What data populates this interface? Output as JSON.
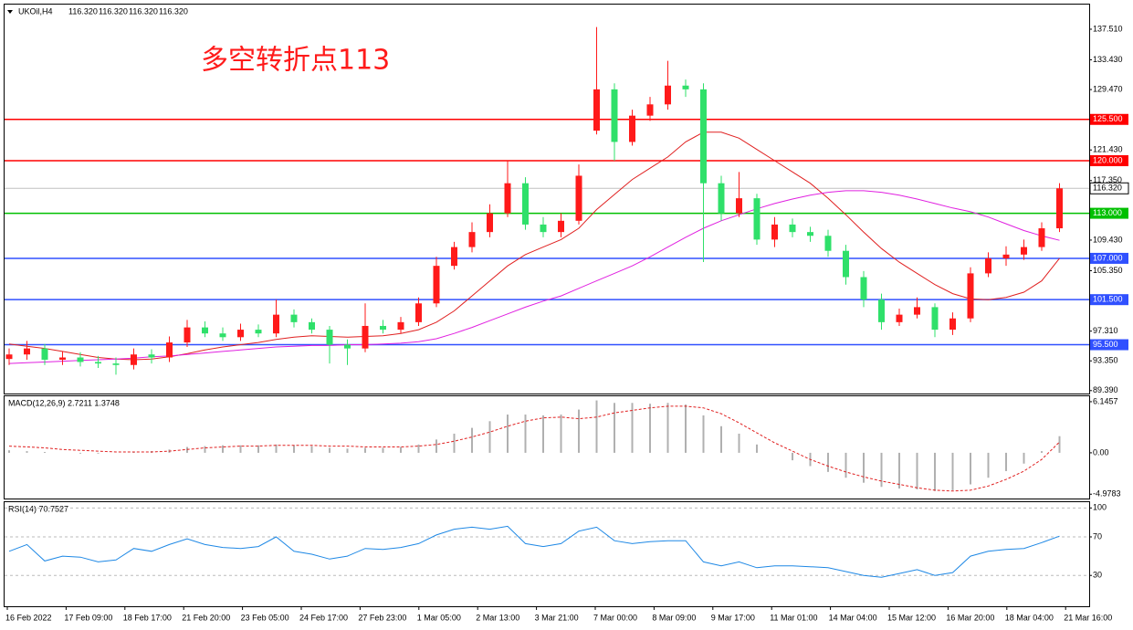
{
  "chart_data": [
    {
      "type": "candlestick",
      "title": "UKOil,H4",
      "ohlc_labels": [
        "116.320",
        "116.320",
        "116.320",
        "116.320"
      ],
      "annotation": "多空转折点113",
      "up_color": "#ff1a1a",
      "down_color": "#2fe06a",
      "open": [
        93.6,
        94.2,
        95.0,
        93.5,
        93.8,
        93.2,
        93.0,
        92.8,
        94.2,
        93.8,
        95.8,
        97.8,
        97.0,
        96.5,
        97.5,
        97.0,
        99.5,
        98.5,
        97.5,
        95.5,
        95.0,
        98.0,
        97.5,
        98.5,
        101.0,
        106.0,
        108.5,
        110.5,
        113.0,
        117.0,
        111.5,
        110.5,
        112.0,
        124.0,
        129.5,
        122.5,
        126.0,
        127.5,
        130.0,
        129.5,
        117.0,
        113.0,
        115.0,
        109.5,
        111.5,
        110.5,
        110.0,
        108.0,
        104.5,
        101.5,
        98.5,
        99.5,
        100.5,
        97.5,
        99.0,
        105.0,
        107.0,
        107.5,
        108.5,
        111.0
      ],
      "high": [
        95.0,
        96.0,
        95.6,
        94.6,
        94.5,
        94.0,
        93.8,
        95.0,
        94.9,
        96.6,
        98.8,
        98.6,
        97.8,
        98.3,
        98.2,
        101.5,
        100.2,
        99.0,
        98.0,
        96.2,
        101.0,
        98.8,
        99.2,
        101.8,
        107.2,
        109.2,
        111.8,
        114.2,
        120.0,
        117.8,
        112.5,
        113.0,
        119.5,
        137.8,
        130.3,
        126.8,
        128.5,
        133.3,
        130.8,
        130.3,
        118.0,
        118.5,
        115.6,
        112.5,
        112.3,
        111.2,
        110.8,
        108.8,
        105.3,
        102.3,
        100.3,
        101.8,
        101.0,
        99.8,
        105.8,
        107.8,
        108.6,
        109.5,
        111.8,
        117.0
      ],
      "low": [
        92.8,
        93.5,
        92.8,
        92.8,
        92.6,
        92.4,
        91.5,
        92.2,
        93.0,
        93.2,
        95.2,
        96.5,
        96.0,
        96.0,
        96.5,
        96.5,
        97.8,
        97.0,
        93.0,
        92.8,
        94.5,
        97.0,
        97.0,
        98.0,
        100.5,
        105.5,
        107.8,
        109.8,
        112.5,
        110.8,
        109.8,
        109.8,
        111.5,
        123.5,
        120.0,
        122.0,
        125.3,
        126.8,
        128.5,
        106.5,
        112.0,
        112.5,
        108.8,
        108.5,
        109.8,
        109.2,
        107.2,
        103.5,
        100.5,
        97.5,
        98.0,
        99.0,
        96.5,
        96.8,
        98.5,
        104.5,
        106.0,
        106.8,
        108.0,
        110.5
      ],
      "close": [
        94.2,
        95.0,
        93.5,
        93.8,
        93.2,
        93.0,
        92.8,
        94.2,
        93.8,
        95.8,
        97.8,
        97.0,
        96.5,
        97.5,
        97.0,
        99.5,
        98.5,
        97.5,
        95.5,
        95.0,
        98.0,
        97.5,
        98.5,
        101.0,
        106.0,
        108.5,
        110.5,
        113.0,
        117.0,
        111.5,
        110.5,
        112.0,
        118.0,
        129.5,
        122.5,
        126.0,
        127.5,
        130.0,
        129.5,
        117.0,
        113.0,
        115.0,
        109.5,
        111.5,
        110.5,
        110.0,
        108.0,
        104.5,
        101.5,
        98.5,
        99.5,
        100.5,
        97.5,
        99.0,
        105.0,
        107.0,
        107.5,
        108.5,
        111.0,
        116.32
      ],
      "moving_averages": [
        {
          "color": "#e02020",
          "values": [
            95.6,
            95.3,
            95.0,
            94.6,
            94.2,
            93.8,
            93.6,
            93.5,
            93.6,
            93.9,
            94.3,
            94.8,
            95.2,
            95.5,
            95.8,
            96.2,
            96.5,
            96.7,
            96.6,
            96.5,
            96.6,
            96.7,
            97.0,
            97.5,
            98.5,
            100.0,
            102.0,
            104.0,
            106.0,
            107.5,
            108.5,
            109.5,
            111.0,
            113.5,
            115.5,
            117.5,
            119.0,
            120.5,
            122.5,
            123.8,
            123.8,
            123.0,
            121.5,
            120.0,
            118.5,
            117.0,
            115.0,
            112.8,
            110.5,
            108.3,
            106.5,
            105.0,
            103.5,
            102.3,
            101.6,
            101.5,
            101.8,
            102.5,
            104.0,
            107.0
          ]
        },
        {
          "color": "#e020e0",
          "values": [
            93.0,
            93.1,
            93.2,
            93.3,
            93.4,
            93.5,
            93.6,
            93.7,
            93.9,
            94.0,
            94.2,
            94.4,
            94.6,
            94.8,
            95.0,
            95.2,
            95.3,
            95.4,
            95.4,
            95.5,
            95.5,
            95.6,
            95.7,
            95.9,
            96.3,
            97.0,
            97.8,
            98.7,
            99.6,
            100.5,
            101.3,
            102.0,
            103.0,
            104.0,
            105.0,
            106.0,
            107.2,
            108.5,
            109.8,
            111.0,
            112.0,
            112.8,
            113.6,
            114.3,
            114.9,
            115.4,
            115.8,
            116.0,
            116.0,
            115.8,
            115.4,
            114.9,
            114.3,
            113.7,
            113.2,
            112.5,
            111.6,
            110.7,
            110.0,
            109.4
          ]
        }
      ],
      "levels": [
        {
          "value": 125.5,
          "label": "125.500",
          "color": "#ff0000"
        },
        {
          "value": 120.0,
          "label": "120.000",
          "color": "#ff0000"
        },
        {
          "value": 113.0,
          "label": "113.000",
          "color": "#00c000"
        },
        {
          "value": 107.0,
          "label": "107.000",
          "color": "#3050ff"
        },
        {
          "value": 101.5,
          "label": "101.500",
          "color": "#3050ff"
        },
        {
          "value": 95.5,
          "label": "95.500",
          "color": "#3050ff"
        }
      ],
      "last_price": {
        "value": 116.32,
        "label": "116.320"
      },
      "ylim": [
        89.0,
        140.79
      ],
      "yticks": [
        {
          "value": 137.51,
          "label": "137.510"
        },
        {
          "value": 133.43,
          "label": "133.430"
        },
        {
          "value": 129.47,
          "label": "129.470"
        },
        {
          "value": 121.43,
          "label": "121.430"
        },
        {
          "value": 117.35,
          "label": "117.350"
        },
        {
          "value": 109.43,
          "label": "109.430"
        },
        {
          "value": 105.35,
          "label": "105.350"
        },
        {
          "value": 97.31,
          "label": "97.310"
        },
        {
          "value": 93.35,
          "label": "93.350"
        },
        {
          "value": 89.39,
          "label": "89.390"
        }
      ]
    },
    {
      "type": "macd",
      "title": "MACD(12,26,9) 2.7211 1.3748",
      "histogram_color": "#b0b0b0",
      "signal_color": "#e02020",
      "histogram": [
        0.3,
        0.2,
        0.1,
        0.0,
        -0.1,
        -0.1,
        0.0,
        0.1,
        0.2,
        0.4,
        0.7,
        0.8,
        0.9,
        0.9,
        0.9,
        1.0,
        0.9,
        0.8,
        0.6,
        0.5,
        0.6,
        0.6,
        0.7,
        1.0,
        1.6,
        2.3,
        3.0,
        3.8,
        4.6,
        4.6,
        4.5,
        4.6,
        5.2,
        6.3,
        6.0,
        6.0,
        5.9,
        6.0,
        5.8,
        4.5,
        3.2,
        2.3,
        1.0,
        0.0,
        -0.9,
        -1.6,
        -2.3,
        -3.0,
        -3.6,
        -4.1,
        -4.3,
        -4.4,
        -4.6,
        -4.5,
        -3.8,
        -3.0,
        -2.2,
        -1.3,
        0.2,
        2.0
      ],
      "signal": [
        0.8,
        0.7,
        0.6,
        0.4,
        0.3,
        0.2,
        0.1,
        0.1,
        0.1,
        0.2,
        0.4,
        0.6,
        0.7,
        0.8,
        0.8,
        0.9,
        0.9,
        0.9,
        0.8,
        0.8,
        0.7,
        0.7,
        0.7,
        0.8,
        1.0,
        1.4,
        1.9,
        2.5,
        3.2,
        3.8,
        4.2,
        4.3,
        4.1,
        4.3,
        4.8,
        5.1,
        5.4,
        5.6,
        5.6,
        5.4,
        4.7,
        3.6,
        2.4,
        1.2,
        0.2,
        -0.8,
        -1.6,
        -2.3,
        -2.9,
        -3.4,
        -3.8,
        -4.2,
        -4.5,
        -4.6,
        -4.5,
        -4.0,
        -3.2,
        -2.2,
        -0.8,
        1.3
      ],
      "ylim": [
        -5.5,
        6.8
      ],
      "yticks": [
        {
          "value": 6.1457,
          "label": "6.1457"
        },
        {
          "value": 0,
          "label": "0.00"
        },
        {
          "value": -4.9783,
          "label": "-4.9783"
        }
      ]
    },
    {
      "type": "line",
      "title": "RSI(14) 70.7527",
      "color": "#1e88e5",
      "values": [
        55,
        62,
        45,
        50,
        49,
        44,
        46,
        58,
        55,
        62,
        68,
        62,
        59,
        58,
        60,
        70,
        55,
        52,
        47,
        50,
        58,
        57,
        59,
        63,
        72,
        78,
        80,
        78,
        81,
        63,
        60,
        63,
        76,
        80,
        66,
        63,
        65,
        66,
        66,
        44,
        40,
        44,
        38,
        40,
        40,
        39,
        38,
        34,
        30,
        28,
        32,
        36,
        30,
        33,
        50,
        55,
        57,
        58,
        64,
        70.75
      ],
      "ylim": [
        -2,
        106
      ],
      "yticks": [
        100,
        70,
        30
      ],
      "grid": true,
      "x_tick_labels": [
        "16 Feb 2022",
        "17 Feb 09:00",
        "18 Feb 17:00",
        "21 Feb 20:00",
        "23 Feb 05:00",
        "24 Feb 17:00",
        "27 Feb 23:00",
        "1 Mar 05:00",
        "2 Mar 13:00",
        "3 Mar 21:00",
        "7 Mar 00:00",
        "8 Mar 09:00",
        "9 Mar 17:00",
        "11 Mar 01:00",
        "14 Mar 04:00",
        "15 Mar 12:00",
        "16 Mar 20:00",
        "18 Mar 04:00",
        "21 Mar 16:00"
      ]
    }
  ]
}
